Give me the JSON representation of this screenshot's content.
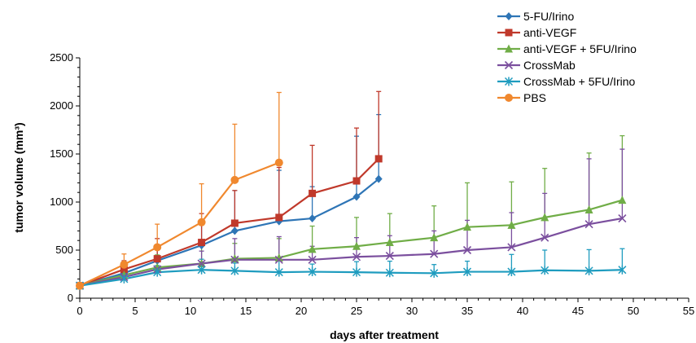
{
  "chart_data": {
    "type": "line",
    "xlabel": "days after treatment",
    "ylabel": "tumor volume (mm³)",
    "xlim": [
      0,
      55
    ],
    "ylim": [
      0,
      2500
    ],
    "xticks": [
      0,
      5,
      10,
      15,
      20,
      25,
      30,
      35,
      40,
      45,
      50,
      55
    ],
    "yticks": [
      0,
      500,
      1000,
      1500,
      2000,
      2500
    ],
    "grid": false,
    "legend_position": "top-right",
    "series": [
      {
        "name": "5-FU/Irino",
        "color": "#2e75b6",
        "marker": "diamond",
        "x": [
          0,
          4,
          7,
          11,
          14,
          18,
          21,
          25,
          27
        ],
        "y": [
          130,
          260,
          390,
          550,
          700,
          800,
          830,
          1055,
          1240
        ],
        "err_up": [
          20,
          60,
          160,
          260,
          420,
          530,
          330,
          630,
          670
        ]
      },
      {
        "name": "anti-VEGF",
        "color": "#c0392b",
        "marker": "square",
        "x": [
          0,
          4,
          7,
          11,
          14,
          18,
          21,
          25,
          27
        ],
        "y": [
          130,
          300,
          410,
          580,
          780,
          840,
          1090,
          1220,
          1450
        ],
        "err_up": [
          20,
          90,
          210,
          300,
          340,
          520,
          500,
          550,
          700
        ]
      },
      {
        "name": "anti-VEGF + 5FU/Irino",
        "color": "#70ad47",
        "marker": "triangle",
        "x": [
          0,
          4,
          7,
          11,
          14,
          18,
          21,
          25,
          28,
          32,
          35,
          39,
          42,
          46,
          49
        ],
        "y": [
          130,
          240,
          320,
          360,
          410,
          420,
          510,
          540,
          580,
          630,
          740,
          760,
          840,
          920,
          1020
        ],
        "err_up": [
          20,
          60,
          130,
          240,
          160,
          200,
          240,
          300,
          300,
          330,
          460,
          450,
          510,
          590,
          670
        ]
      },
      {
        "name": "CrossMab",
        "color": "#7b4f9e",
        "marker": "x",
        "x": [
          0,
          4,
          7,
          11,
          14,
          18,
          21,
          25,
          28,
          32,
          35,
          39,
          42,
          46,
          49
        ],
        "y": [
          130,
          220,
          300,
          360,
          400,
          400,
          400,
          430,
          440,
          460,
          500,
          530,
          630,
          770,
          830
        ],
        "err_up": [
          20,
          50,
          100,
          130,
          220,
          240,
          140,
          200,
          210,
          240,
          310,
          360,
          460,
          680,
          720
        ]
      },
      {
        "name": "CrossMab + 5FU/Irino",
        "color": "#1f9cbf",
        "marker": "star",
        "x": [
          0,
          4,
          7,
          11,
          14,
          18,
          21,
          25,
          28,
          32,
          35,
          39,
          42,
          46,
          49
        ],
        "y": [
          130,
          200,
          270,
          295,
          285,
          270,
          275,
          270,
          265,
          260,
          275,
          275,
          290,
          285,
          295
        ],
        "err_up": [
          20,
          40,
          70,
          110,
          80,
          120,
          80,
          110,
          120,
          90,
          110,
          180,
          210,
          220,
          220
        ]
      },
      {
        "name": "PBS",
        "color": "#f0882e",
        "marker": "circle",
        "x": [
          0,
          4,
          7,
          11,
          14,
          18
        ],
        "y": [
          130,
          350,
          530,
          790,
          1230,
          1410
        ],
        "err_up": [
          20,
          110,
          240,
          400,
          580,
          730
        ]
      }
    ]
  }
}
